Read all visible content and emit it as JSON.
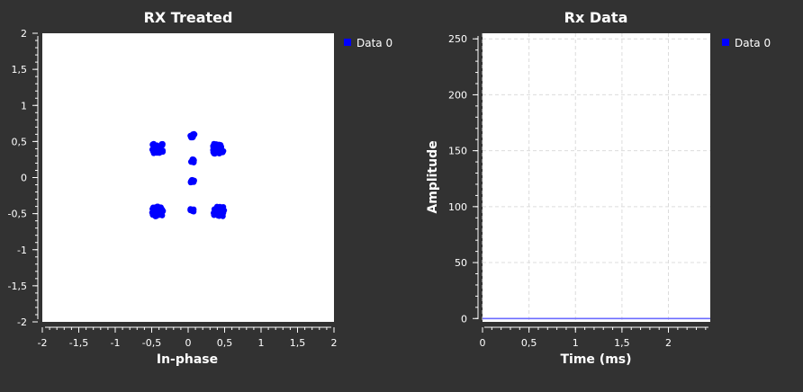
{
  "chart_data": [
    {
      "type": "scatter",
      "title": "RX Treated",
      "xlabel": "In-phase",
      "ylabel": "",
      "xlim": [
        -2,
        2
      ],
      "ylim": [
        -2,
        2
      ],
      "xticks": [
        "-2",
        "-1,5",
        "-1",
        "-0,5",
        "0",
        "0,5",
        "1",
        "1,5",
        "2"
      ],
      "yticks": [
        "2",
        "1,5",
        "1",
        "0,5",
        "0",
        "-0,5",
        "-1",
        "-1,5",
        "-2"
      ],
      "grid": false,
      "legend_position": "right",
      "series": [
        {
          "name": "Data 0",
          "color": "#0000ff",
          "clusters": [
            {
              "x": -0.42,
              "y": 0.4
            },
            {
              "x": 0.42,
              "y": 0.4
            },
            {
              "x": -0.42,
              "y": -0.47
            },
            {
              "x": 0.42,
              "y": -0.47
            },
            {
              "x": 0.06,
              "y": 0.58
            },
            {
              "x": 0.07,
              "y": 0.23
            },
            {
              "x": 0.06,
              "y": -0.05
            },
            {
              "x": 0.06,
              "y": -0.45
            }
          ]
        }
      ]
    },
    {
      "type": "line",
      "title": "Rx Data",
      "xlabel": "Time (ms)",
      "ylabel": "Amplitude",
      "xlim": [
        0,
        2.45
      ],
      "ylim": [
        -3,
        255
      ],
      "xticks": [
        "0",
        "0,5",
        "1",
        "1,5",
        "2"
      ],
      "yticks": [
        "250",
        "200",
        "150",
        "100",
        "50",
        "0"
      ],
      "grid": true,
      "legend_position": "right",
      "series": [
        {
          "name": "Data 0",
          "color": "#6b6bff",
          "x": [
            0,
            2.45
          ],
          "y": [
            0,
            0
          ]
        }
      ]
    }
  ]
}
